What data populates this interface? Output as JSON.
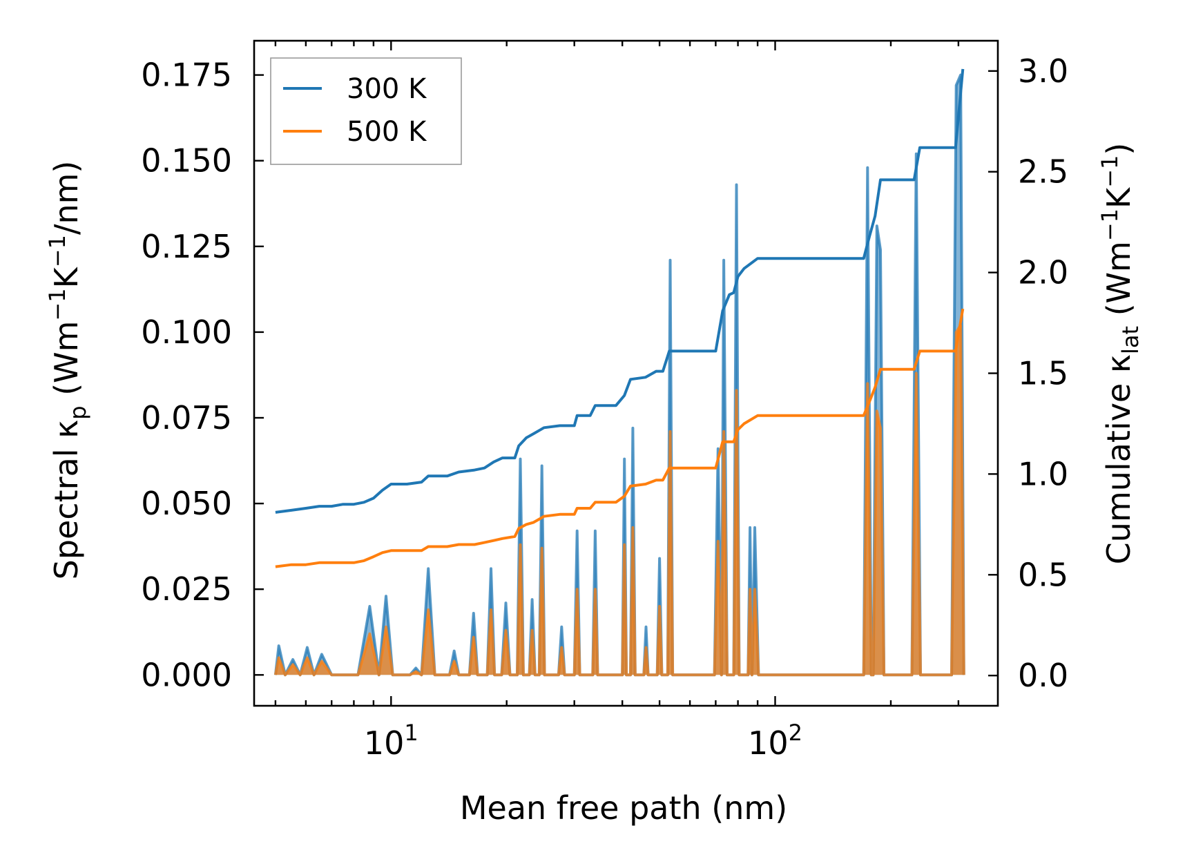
{
  "chart_data": {
    "type": "line",
    "title": "",
    "xlabel": "Mean free path (nm)",
    "ylabel_left": {
      "main": "Spectral κ",
      "sub": "p",
      "unit_open": " (Wm",
      "sup1": "−1",
      "unit_mid": "K",
      "sup2": "−1",
      "unit_close": "/nm)"
    },
    "ylabel_right": {
      "main": "Cumulative κ",
      "sub": "lat",
      "unit_open": " (Wm",
      "sup1": "−1",
      "unit_mid": "K",
      "sup2": "−1",
      "unit_close": ")"
    },
    "xscale": "log",
    "xlim": [
      4.4,
      380
    ],
    "ylim_left": [
      -0.009,
      0.185
    ],
    "ylim_right": [
      -0.15,
      3.15
    ],
    "xticks": [
      {
        "value": 10,
        "base": "10",
        "exp": "1"
      },
      {
        "value": 100,
        "base": "10",
        "exp": "2"
      }
    ],
    "yticks_left": [
      {
        "value": 0.0,
        "label": "0.000"
      },
      {
        "value": 0.025,
        "label": "0.025"
      },
      {
        "value": 0.05,
        "label": "0.050"
      },
      {
        "value": 0.075,
        "label": "0.075"
      },
      {
        "value": 0.1,
        "label": "0.100"
      },
      {
        "value": 0.125,
        "label": "0.125"
      },
      {
        "value": 0.15,
        "label": "0.150"
      },
      {
        "value": 0.175,
        "label": "0.175"
      }
    ],
    "yticks_right": [
      {
        "value": 0.0,
        "label": "0.0"
      },
      {
        "value": 0.5,
        "label": "0.5"
      },
      {
        "value": 1.0,
        "label": "1.0"
      },
      {
        "value": 1.5,
        "label": "1.5"
      },
      {
        "value": 2.0,
        "label": "2.0"
      },
      {
        "value": 2.5,
        "label": "2.5"
      },
      {
        "value": 3.0,
        "label": "3.0"
      }
    ],
    "legend": {
      "position": "top-left"
    },
    "series": [
      {
        "name": "300 K",
        "color": "#1f77b4",
        "cumulative": [
          [
            5.0,
            0.81
          ],
          [
            5.5,
            0.82
          ],
          [
            6.0,
            0.83
          ],
          [
            6.5,
            0.84
          ],
          [
            7.0,
            0.84
          ],
          [
            7.5,
            0.85
          ],
          [
            8.0,
            0.85
          ],
          [
            8.5,
            0.86
          ],
          [
            9.0,
            0.88
          ],
          [
            9.5,
            0.92
          ],
          [
            10.0,
            0.95
          ],
          [
            11.0,
            0.95
          ],
          [
            12.0,
            0.96
          ],
          [
            12.5,
            0.99
          ],
          [
            14.0,
            0.99
          ],
          [
            15.0,
            1.01
          ],
          [
            16.5,
            1.02
          ],
          [
            17.5,
            1.03
          ],
          [
            18.5,
            1.06
          ],
          [
            19.5,
            1.08
          ],
          [
            21.0,
            1.08
          ],
          [
            21.5,
            1.14
          ],
          [
            22.5,
            1.18
          ],
          [
            23.5,
            1.2
          ],
          [
            24.5,
            1.22
          ],
          [
            25.0,
            1.23
          ],
          [
            27.5,
            1.24
          ],
          [
            30.0,
            1.24
          ],
          [
            30.5,
            1.29
          ],
          [
            33.0,
            1.29
          ],
          [
            34.0,
            1.34
          ],
          [
            38.5,
            1.34
          ],
          [
            40.5,
            1.39
          ],
          [
            42.0,
            1.47
          ],
          [
            46.0,
            1.48
          ],
          [
            49.0,
            1.51
          ],
          [
            51.0,
            1.51
          ],
          [
            53.0,
            1.61
          ],
          [
            70.0,
            1.61
          ],
          [
            73.0,
            1.81
          ],
          [
            76.0,
            1.89
          ],
          [
            78.0,
            1.9
          ],
          [
            80.0,
            1.98
          ],
          [
            83.0,
            2.02
          ],
          [
            90.0,
            2.07
          ],
          [
            170.0,
            2.07
          ],
          [
            176.0,
            2.18
          ],
          [
            182.0,
            2.28
          ],
          [
            188.0,
            2.46
          ],
          [
            230.0,
            2.46
          ],
          [
            238.0,
            2.62
          ],
          [
            295.0,
            2.62
          ],
          [
            308.0,
            3.01
          ]
        ],
        "spectral": [
          [
            5.0,
            0.0
          ],
          [
            5.1,
            0.0085
          ],
          [
            5.3,
            0.0
          ],
          [
            5.55,
            0.0045
          ],
          [
            5.8,
            0.0
          ],
          [
            6.05,
            0.008
          ],
          [
            6.3,
            0.0
          ],
          [
            6.6,
            0.006
          ],
          [
            7.0,
            0.0
          ],
          [
            7.5,
            0.0
          ],
          [
            8.2,
            0.0
          ],
          [
            8.8,
            0.02
          ],
          [
            9.3,
            0.0
          ],
          [
            9.7,
            0.023
          ],
          [
            10.1,
            0.0
          ],
          [
            11.2,
            0.0
          ],
          [
            11.6,
            0.002
          ],
          [
            12.0,
            0.0
          ],
          [
            12.5,
            0.031
          ],
          [
            13.0,
            0.0
          ],
          [
            14.2,
            0.0
          ],
          [
            14.6,
            0.007
          ],
          [
            15.0,
            0.0
          ],
          [
            16.0,
            0.0
          ],
          [
            16.4,
            0.018
          ],
          [
            16.8,
            0.0
          ],
          [
            17.8,
            0.0
          ],
          [
            18.2,
            0.031
          ],
          [
            18.6,
            0.0
          ],
          [
            19.4,
            0.0
          ],
          [
            19.9,
            0.021
          ],
          [
            20.4,
            0.0
          ],
          [
            21.3,
            0.0
          ],
          [
            21.7,
            0.063
          ],
          [
            22.1,
            0.0
          ],
          [
            22.9,
            0.0
          ],
          [
            23.3,
            0.022
          ],
          [
            23.7,
            0.0
          ],
          [
            24.3,
            0.0
          ],
          [
            24.7,
            0.061
          ],
          [
            25.1,
            0.0
          ],
          [
            27.3,
            0.0
          ],
          [
            27.8,
            0.014
          ],
          [
            28.3,
            0.0
          ],
          [
            30.0,
            0.0
          ],
          [
            30.5,
            0.042
          ],
          [
            31.0,
            0.0
          ],
          [
            33.5,
            0.0
          ],
          [
            34.0,
            0.042
          ],
          [
            34.5,
            0.0
          ],
          [
            40.0,
            0.0
          ],
          [
            40.5,
            0.063
          ],
          [
            41.0,
            0.0
          ],
          [
            42.0,
            0.0
          ],
          [
            42.6,
            0.072
          ],
          [
            43.2,
            0.0
          ],
          [
            45.5,
            0.0
          ],
          [
            46.1,
            0.014
          ],
          [
            46.7,
            0.0
          ],
          [
            49.3,
            0.0
          ],
          [
            50.0,
            0.034
          ],
          [
            50.7,
            0.0
          ],
          [
            52.5,
            0.0
          ],
          [
            53.3,
            0.121
          ],
          [
            54.1,
            0.0
          ],
          [
            69.5,
            0.0
          ],
          [
            71.0,
            0.066
          ],
          [
            72.5,
            0.0
          ],
          [
            73.5,
            0.121
          ],
          [
            75.0,
            0.0
          ],
          [
            78.0,
            0.0
          ],
          [
            79.3,
            0.143
          ],
          [
            80.6,
            0.0
          ],
          [
            85.0,
            0.0
          ],
          [
            86.0,
            0.043
          ],
          [
            87.0,
            0.0
          ],
          [
            88.5,
            0.043
          ],
          [
            90.5,
            0.0
          ],
          [
            170.0,
            0.0
          ],
          [
            174.0,
            0.148
          ],
          [
            178.0,
            0.0
          ],
          [
            180.0,
            0.0
          ],
          [
            184.0,
            0.131
          ],
          [
            188.0,
            0.124
          ],
          [
            192.0,
            0.0
          ],
          [
            227.0,
            0.0
          ],
          [
            233.0,
            0.152
          ],
          [
            239.0,
            0.0
          ],
          [
            288.0,
            0.0
          ],
          [
            296.0,
            0.172
          ],
          [
            304.0,
            0.175
          ],
          [
            310.0,
            0.0
          ]
        ]
      },
      {
        "name": "500 K",
        "color": "#ff7f0e",
        "cumulative": [
          [
            5.0,
            0.54
          ],
          [
            5.5,
            0.55
          ],
          [
            6.0,
            0.55
          ],
          [
            6.5,
            0.56
          ],
          [
            7.0,
            0.56
          ],
          [
            7.5,
            0.56
          ],
          [
            8.0,
            0.56
          ],
          [
            8.5,
            0.57
          ],
          [
            9.0,
            0.59
          ],
          [
            9.5,
            0.61
          ],
          [
            10.0,
            0.62
          ],
          [
            11.0,
            0.62
          ],
          [
            12.0,
            0.62
          ],
          [
            12.5,
            0.64
          ],
          [
            14.0,
            0.64
          ],
          [
            15.0,
            0.65
          ],
          [
            16.5,
            0.65
          ],
          [
            17.5,
            0.66
          ],
          [
            18.5,
            0.67
          ],
          [
            19.5,
            0.68
          ],
          [
            21.0,
            0.69
          ],
          [
            21.5,
            0.73
          ],
          [
            22.5,
            0.75
          ],
          [
            23.5,
            0.76
          ],
          [
            24.5,
            0.78
          ],
          [
            25.0,
            0.79
          ],
          [
            27.5,
            0.8
          ],
          [
            30.0,
            0.8
          ],
          [
            30.5,
            0.83
          ],
          [
            33.0,
            0.83
          ],
          [
            34.0,
            0.86
          ],
          [
            38.5,
            0.86
          ],
          [
            40.5,
            0.89
          ],
          [
            42.0,
            0.94
          ],
          [
            46.0,
            0.95
          ],
          [
            49.0,
            0.97
          ],
          [
            51.0,
            0.97
          ],
          [
            53.0,
            1.03
          ],
          [
            70.0,
            1.03
          ],
          [
            73.0,
            1.16
          ],
          [
            76.0,
            1.16
          ],
          [
            78.0,
            1.16
          ],
          [
            80.0,
            1.22
          ],
          [
            83.0,
            1.25
          ],
          [
            90.0,
            1.29
          ],
          [
            170.0,
            1.29
          ],
          [
            176.0,
            1.36
          ],
          [
            182.0,
            1.43
          ],
          [
            188.0,
            1.52
          ],
          [
            230.0,
            1.52
          ],
          [
            238.0,
            1.61
          ],
          [
            295.0,
            1.61
          ],
          [
            308.0,
            1.82
          ]
        ],
        "spectral": [
          [
            5.0,
            0.0
          ],
          [
            5.1,
            0.005
          ],
          [
            5.3,
            0.0
          ],
          [
            5.55,
            0.003
          ],
          [
            5.8,
            0.0
          ],
          [
            6.05,
            0.005
          ],
          [
            6.3,
            0.0
          ],
          [
            6.6,
            0.004
          ],
          [
            7.0,
            0.0
          ],
          [
            7.5,
            0.0
          ],
          [
            8.2,
            0.0
          ],
          [
            8.8,
            0.012
          ],
          [
            9.3,
            0.0
          ],
          [
            9.7,
            0.014
          ],
          [
            10.1,
            0.0
          ],
          [
            11.2,
            0.0
          ],
          [
            11.6,
            0.001
          ],
          [
            12.0,
            0.0
          ],
          [
            12.5,
            0.019
          ],
          [
            13.0,
            0.0
          ],
          [
            14.2,
            0.0
          ],
          [
            14.6,
            0.004
          ],
          [
            15.0,
            0.0
          ],
          [
            16.0,
            0.0
          ],
          [
            16.4,
            0.011
          ],
          [
            16.8,
            0.0
          ],
          [
            17.8,
            0.0
          ],
          [
            18.2,
            0.019
          ],
          [
            18.6,
            0.0
          ],
          [
            19.4,
            0.0
          ],
          [
            19.9,
            0.013
          ],
          [
            20.4,
            0.0
          ],
          [
            21.3,
            0.0
          ],
          [
            21.7,
            0.038
          ],
          [
            22.1,
            0.0
          ],
          [
            22.9,
            0.0
          ],
          [
            23.3,
            0.013
          ],
          [
            23.7,
            0.0
          ],
          [
            24.3,
            0.0
          ],
          [
            24.7,
            0.037
          ],
          [
            25.1,
            0.0
          ],
          [
            27.3,
            0.0
          ],
          [
            27.8,
            0.008
          ],
          [
            28.3,
            0.0
          ],
          [
            30.0,
            0.0
          ],
          [
            30.5,
            0.025
          ],
          [
            31.0,
            0.0
          ],
          [
            33.5,
            0.0
          ],
          [
            34.0,
            0.025
          ],
          [
            34.5,
            0.0
          ],
          [
            40.0,
            0.0
          ],
          [
            40.5,
            0.038
          ],
          [
            41.0,
            0.0
          ],
          [
            42.0,
            0.0
          ],
          [
            42.6,
            0.043
          ],
          [
            43.2,
            0.0
          ],
          [
            45.5,
            0.0
          ],
          [
            46.1,
            0.008
          ],
          [
            46.7,
            0.0
          ],
          [
            49.3,
            0.0
          ],
          [
            50.0,
            0.02
          ],
          [
            50.7,
            0.0
          ],
          [
            52.5,
            0.0
          ],
          [
            53.3,
            0.071
          ],
          [
            54.1,
            0.0
          ],
          [
            69.5,
            0.0
          ],
          [
            71.0,
            0.039
          ],
          [
            72.5,
            0.0
          ],
          [
            73.5,
            0.071
          ],
          [
            75.0,
            0.0
          ],
          [
            78.0,
            0.0
          ],
          [
            79.3,
            0.083
          ],
          [
            80.6,
            0.0
          ],
          [
            85.0,
            0.0
          ],
          [
            86.0,
            0.025
          ],
          [
            87.0,
            0.0
          ],
          [
            88.5,
            0.025
          ],
          [
            90.5,
            0.0
          ],
          [
            170.0,
            0.0
          ],
          [
            174.0,
            0.085
          ],
          [
            178.0,
            0.0
          ],
          [
            180.0,
            0.0
          ],
          [
            184.0,
            0.077
          ],
          [
            188.0,
            0.072
          ],
          [
            192.0,
            0.0
          ],
          [
            227.0,
            0.0
          ],
          [
            233.0,
            0.088
          ],
          [
            239.0,
            0.0
          ],
          [
            288.0,
            0.0
          ],
          [
            296.0,
            0.1
          ],
          [
            304.0,
            0.102
          ],
          [
            310.0,
            0.0
          ]
        ]
      }
    ]
  }
}
